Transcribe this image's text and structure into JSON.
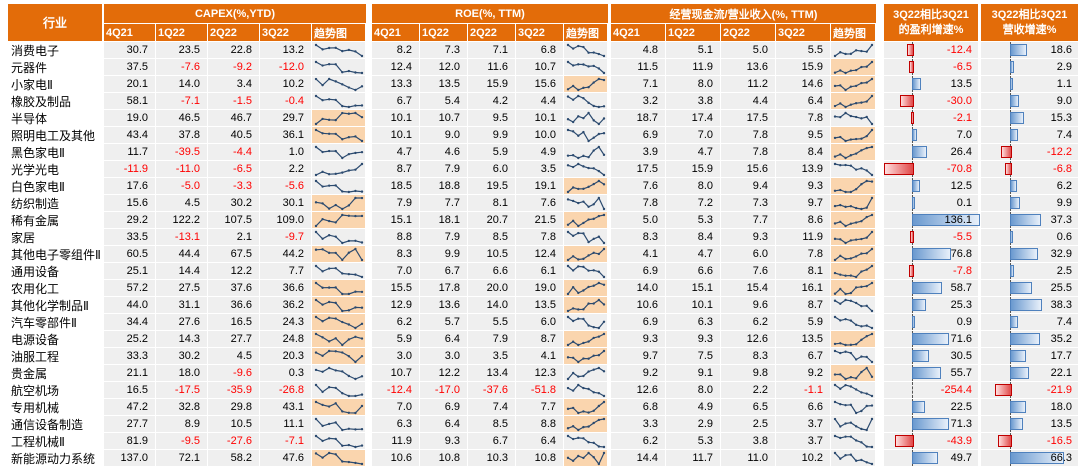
{
  "header": {
    "industry_label": "行业",
    "sections": [
      {
        "title": "CAPEX(%,YTD)",
        "subcols": [
          "4Q21",
          "1Q22",
          "2Q22",
          "3Q22",
          "趋势图"
        ]
      },
      {
        "title": "ROE(%, TTM)",
        "subcols": [
          "4Q21",
          "1Q22",
          "2Q22",
          "3Q22",
          "趋势图"
        ]
      },
      {
        "title": "经营现金流/营业收入(%, TTM)",
        "subcols": [
          "4Q21",
          "1Q22",
          "2Q22",
          "3Q22",
          "趋势图"
        ]
      }
    ],
    "profit_col": {
      "line1": "3Q22相比3Q21",
      "line2": "的盈利增速%"
    },
    "revenue_col": {
      "line1": "3Q22相比3Q21",
      "line2": "营收增速%"
    }
  },
  "colors": {
    "header_bg": "#E36C09",
    "cell_bg": "#EFEFEF",
    "highlight_bg": "#FAD5AE",
    "negative_text": "#FF0000",
    "sparkline": "#2B4A6F",
    "bar_positive": "#6A99CF",
    "bar_positive_border": "#4F81BD",
    "bar_negative": "#E04848",
    "bar_negative_border": "#C00000"
  },
  "chart_data": {
    "type": "table",
    "quarter_columns": [
      "4Q21",
      "1Q22",
      "2Q22",
      "3Q22"
    ],
    "rows": [
      {
        "name": "消费电子",
        "capex": [
          30.7,
          23.5,
          22.8,
          13.2
        ],
        "capex_trend_highlight": false,
        "roe": [
          8.2,
          7.3,
          7.1,
          6.8
        ],
        "roe_trend_highlight": false,
        "ocf": [
          4.8,
          5.1,
          5.0,
          5.5
        ],
        "ocf_trend_highlight": false,
        "profit_growth_3q22_vs_3q21": -12.4,
        "revenue_growth_3q22_vs_3q21": 18.6
      },
      {
        "name": "元器件",
        "capex": [
          37.5,
          -7.6,
          -9.2,
          -12.0
        ],
        "capex_trend_highlight": false,
        "roe": [
          12.4,
          12.0,
          11.6,
          10.7
        ],
        "roe_trend_highlight": false,
        "ocf": [
          11.5,
          11.9,
          13.6,
          15.9
        ],
        "ocf_trend_highlight": true,
        "profit_growth_3q22_vs_3q21": -6.5,
        "revenue_growth_3q22_vs_3q21": 2.9
      },
      {
        "name": "小家电Ⅱ",
        "capex": [
          20.1,
          14.0,
          3.4,
          10.2
        ],
        "capex_trend_highlight": false,
        "roe": [
          13.3,
          13.5,
          15.9,
          15.6
        ],
        "roe_trend_highlight": true,
        "ocf": [
          7.1,
          8.0,
          11.2,
          14.6
        ],
        "ocf_trend_highlight": true,
        "profit_growth_3q22_vs_3q21": 13.5,
        "revenue_growth_3q22_vs_3q21": 1.1
      },
      {
        "name": "橡胶及制品",
        "capex": [
          58.1,
          -7.1,
          -1.5,
          -0.4
        ],
        "capex_trend_highlight": false,
        "roe": [
          6.7,
          5.4,
          4.2,
          4.4
        ],
        "roe_trend_highlight": false,
        "ocf": [
          3.2,
          3.8,
          4.4,
          6.4
        ],
        "ocf_trend_highlight": true,
        "profit_growth_3q22_vs_3q21": -30.0,
        "revenue_growth_3q22_vs_3q21": 9.0
      },
      {
        "name": "半导体",
        "capex": [
          19.0,
          46.5,
          46.7,
          29.7
        ],
        "capex_trend_highlight": true,
        "roe": [
          10.1,
          10.7,
          9.5,
          10.1
        ],
        "roe_trend_highlight": false,
        "ocf": [
          18.7,
          17.4,
          17.5,
          7.8
        ],
        "ocf_trend_highlight": false,
        "profit_growth_3q22_vs_3q21": -2.1,
        "revenue_growth_3q22_vs_3q21": 15.3
      },
      {
        "name": "照明电工及其他",
        "capex": [
          43.4,
          37.8,
          40.5,
          36.1
        ],
        "capex_trend_highlight": true,
        "roe": [
          10.1,
          9.0,
          9.9,
          10.0
        ],
        "roe_trend_highlight": false,
        "ocf": [
          6.9,
          7.0,
          7.8,
          9.5
        ],
        "ocf_trend_highlight": true,
        "profit_growth_3q22_vs_3q21": 7.0,
        "revenue_growth_3q22_vs_3q21": 7.4
      },
      {
        "name": "黑色家电Ⅱ",
        "capex": [
          11.7,
          -39.5,
          -4.4,
          1.0
        ],
        "capex_trend_highlight": false,
        "roe": [
          4.7,
          4.6,
          5.9,
          4.9
        ],
        "roe_trend_highlight": false,
        "ocf": [
          3.9,
          4.7,
          7.8,
          8.4
        ],
        "ocf_trend_highlight": true,
        "profit_growth_3q22_vs_3q21": 26.4,
        "revenue_growth_3q22_vs_3q21": -12.2
      },
      {
        "name": "光学光电",
        "capex": [
          -11.9,
          -11.0,
          -6.5,
          2.2
        ],
        "capex_trend_highlight": false,
        "roe": [
          8.7,
          7.9,
          6.0,
          3.5
        ],
        "roe_trend_highlight": false,
        "ocf": [
          17.5,
          15.9,
          15.6,
          13.9
        ],
        "ocf_trend_highlight": false,
        "profit_growth_3q22_vs_3q21": -70.8,
        "revenue_growth_3q22_vs_3q21": -6.8
      },
      {
        "name": "白色家电Ⅱ",
        "capex": [
          17.6,
          -5.0,
          -3.3,
          -5.6
        ],
        "capex_trend_highlight": false,
        "roe": [
          18.5,
          18.8,
          19.5,
          19.1
        ],
        "roe_trend_highlight": true,
        "ocf": [
          7.6,
          8.0,
          9.4,
          9.3
        ],
        "ocf_trend_highlight": true,
        "profit_growth_3q22_vs_3q21": 12.5,
        "revenue_growth_3q22_vs_3q21": 6.2
      },
      {
        "name": "纺织制造",
        "capex": [
          15.6,
          4.5,
          30.2,
          30.1
        ],
        "capex_trend_highlight": true,
        "roe": [
          7.9,
          7.7,
          8.1,
          7.6
        ],
        "roe_trend_highlight": false,
        "ocf": [
          7.8,
          7.2,
          7.3,
          9.7
        ],
        "ocf_trend_highlight": true,
        "profit_growth_3q22_vs_3q21": 0.1,
        "revenue_growth_3q22_vs_3q21": 9.9
      },
      {
        "name": "稀有金属",
        "capex": [
          29.2,
          122.2,
          107.5,
          109.0
        ],
        "capex_trend_highlight": true,
        "roe": [
          15.1,
          18.1,
          20.7,
          21.5
        ],
        "roe_trend_highlight": true,
        "ocf": [
          5.0,
          5.3,
          7.7,
          8.6
        ],
        "ocf_trend_highlight": true,
        "profit_growth_3q22_vs_3q21": 136.1,
        "revenue_growth_3q22_vs_3q21": 37.3
      },
      {
        "name": "家居",
        "capex": [
          33.5,
          -13.1,
          2.1,
          -9.7
        ],
        "capex_trend_highlight": false,
        "roe": [
          8.8,
          7.9,
          8.5,
          7.8
        ],
        "roe_trend_highlight": false,
        "ocf": [
          8.3,
          8.4,
          9.3,
          11.9
        ],
        "ocf_trend_highlight": true,
        "profit_growth_3q22_vs_3q21": -5.5,
        "revenue_growth_3q22_vs_3q21": 0.6
      },
      {
        "name": "其他电子零组件Ⅱ",
        "capex": [
          60.5,
          44.4,
          67.5,
          44.2
        ],
        "capex_trend_highlight": true,
        "roe": [
          8.3,
          9.9,
          10.5,
          12.4
        ],
        "roe_trend_highlight": true,
        "ocf": [
          4.1,
          4.7,
          6.0,
          7.8
        ],
        "ocf_trend_highlight": true,
        "profit_growth_3q22_vs_3q21": 76.8,
        "revenue_growth_3q22_vs_3q21": 32.9
      },
      {
        "name": "通用设备",
        "capex": [
          25.1,
          14.4,
          12.2,
          7.7
        ],
        "capex_trend_highlight": false,
        "roe": [
          7.0,
          6.7,
          6.6,
          6.1
        ],
        "roe_trend_highlight": false,
        "ocf": [
          6.9,
          6.6,
          7.6,
          8.1
        ],
        "ocf_trend_highlight": true,
        "profit_growth_3q22_vs_3q21": -7.8,
        "revenue_growth_3q22_vs_3q21": 2.5
      },
      {
        "name": "农用化工",
        "capex": [
          57.2,
          27.5,
          37.6,
          36.6
        ],
        "capex_trend_highlight": true,
        "roe": [
          15.5,
          17.8,
          20.0,
          19.0
        ],
        "roe_trend_highlight": true,
        "ocf": [
          14.0,
          15.1,
          15.4,
          16.1
        ],
        "ocf_trend_highlight": true,
        "profit_growth_3q22_vs_3q21": 58.7,
        "revenue_growth_3q22_vs_3q21": 25.5
      },
      {
        "name": "其他化学制品Ⅱ",
        "capex": [
          44.0,
          31.1,
          36.6,
          36.2
        ],
        "capex_trend_highlight": true,
        "roe": [
          12.9,
          13.6,
          14.0,
          13.5
        ],
        "roe_trend_highlight": true,
        "ocf": [
          10.6,
          10.1,
          9.6,
          8.7
        ],
        "ocf_trend_highlight": false,
        "profit_growth_3q22_vs_3q21": 25.3,
        "revenue_growth_3q22_vs_3q21": 38.3
      },
      {
        "name": "汽车零部件Ⅱ",
        "capex": [
          34.4,
          27.6,
          16.5,
          24.3
        ],
        "capex_trend_highlight": true,
        "roe": [
          6.2,
          5.7,
          5.5,
          6.0
        ],
        "roe_trend_highlight": false,
        "ocf": [
          6.9,
          6.3,
          6.2,
          5.9
        ],
        "ocf_trend_highlight": false,
        "profit_growth_3q22_vs_3q21": 0.9,
        "revenue_growth_3q22_vs_3q21": 7.4
      },
      {
        "name": "电源设备",
        "capex": [
          25.2,
          14.3,
          27.7,
          24.8
        ],
        "capex_trend_highlight": true,
        "roe": [
          5.9,
          6.4,
          7.9,
          8.7
        ],
        "roe_trend_highlight": true,
        "ocf": [
          9.3,
          9.3,
          12.6,
          13.5
        ],
        "ocf_trend_highlight": true,
        "profit_growth_3q22_vs_3q21": 71.6,
        "revenue_growth_3q22_vs_3q21": 35.2
      },
      {
        "name": "油服工程",
        "capex": [
          33.3,
          30.2,
          4.5,
          20.3
        ],
        "capex_trend_highlight": true,
        "roe": [
          3.0,
          3.0,
          3.5,
          4.1
        ],
        "roe_trend_highlight": true,
        "ocf": [
          9.7,
          7.5,
          8.3,
          6.7
        ],
        "ocf_trend_highlight": false,
        "profit_growth_3q22_vs_3q21": 30.5,
        "revenue_growth_3q22_vs_3q21": 17.7
      },
      {
        "name": "贵金属",
        "capex": [
          21.1,
          18.0,
          -9.6,
          0.3
        ],
        "capex_trend_highlight": false,
        "roe": [
          10.7,
          12.2,
          13.4,
          12.3
        ],
        "roe_trend_highlight": false,
        "ocf": [
          9.2,
          9.1,
          9.8,
          9.2
        ],
        "ocf_trend_highlight": true,
        "profit_growth_3q22_vs_3q21": 55.7,
        "revenue_growth_3q22_vs_3q21": 22.1
      },
      {
        "name": "航空机场",
        "capex": [
          16.5,
          -17.5,
          -35.9,
          -26.8
        ],
        "capex_trend_highlight": false,
        "roe": [
          -12.4,
          -17.0,
          -37.6,
          -51.8
        ],
        "roe_trend_highlight": false,
        "ocf": [
          12.6,
          8.0,
          2.2,
          -1.1
        ],
        "ocf_trend_highlight": false,
        "profit_growth_3q22_vs_3q21": -254.4,
        "revenue_growth_3q22_vs_3q21": -21.9
      },
      {
        "name": "专用机械",
        "capex": [
          47.2,
          32.8,
          29.8,
          43.1
        ],
        "capex_trend_highlight": true,
        "roe": [
          7.0,
          6.9,
          7.4,
          7.7
        ],
        "roe_trend_highlight": true,
        "ocf": [
          6.8,
          4.9,
          6.5,
          6.6
        ],
        "ocf_trend_highlight": false,
        "profit_growth_3q22_vs_3q21": 22.5,
        "revenue_growth_3q22_vs_3q21": 18.0
      },
      {
        "name": "通信设备制造",
        "capex": [
          27.7,
          8.9,
          10.5,
          11.1
        ],
        "capex_trend_highlight": false,
        "roe": [
          6.3,
          6.4,
          8.5,
          8.8
        ],
        "roe_trend_highlight": true,
        "ocf": [
          3.3,
          2.9,
          2.5,
          3.7
        ],
        "ocf_trend_highlight": false,
        "profit_growth_3q22_vs_3q21": 71.3,
        "revenue_growth_3q22_vs_3q21": 13.5
      },
      {
        "name": "工程机械Ⅱ",
        "capex": [
          81.9,
          -9.5,
          -27.6,
          -7.1
        ],
        "capex_trend_highlight": false,
        "roe": [
          11.9,
          9.3,
          6.7,
          6.4
        ],
        "roe_trend_highlight": false,
        "ocf": [
          6.2,
          5.3,
          3.8,
          3.7
        ],
        "ocf_trend_highlight": false,
        "profit_growth_3q22_vs_3q21": -43.9,
        "revenue_growth_3q22_vs_3q21": -16.5
      },
      {
        "name": "新能源动力系统",
        "capex": [
          137.0,
          72.1,
          58.2,
          47.6
        ],
        "capex_trend_highlight": true,
        "roe": [
          10.6,
          10.8,
          10.3,
          10.8
        ],
        "roe_trend_highlight": true,
        "ocf": [
          14.4,
          11.7,
          11.0,
          10.2
        ],
        "ocf_trend_highlight": false,
        "profit_growth_3q22_vs_3q21": 49.7,
        "revenue_growth_3q22_vs_3q21": 66.3
      }
    ]
  }
}
